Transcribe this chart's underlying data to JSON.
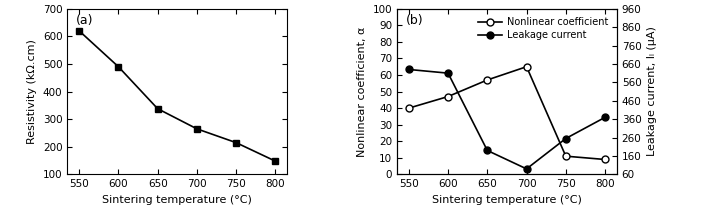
{
  "temps": [
    550,
    600,
    650,
    700,
    750,
    800
  ],
  "resistivity": [
    620,
    490,
    338,
    265,
    215,
    148
  ],
  "nonlinear_coeff": [
    40,
    47,
    57,
    65,
    11,
    9
  ],
  "leakage_current": [
    630,
    610,
    190,
    90,
    255,
    370
  ],
  "panel_a": {
    "ylabel": "Resistivity (kΩ.cm)",
    "ylim": [
      100,
      700
    ],
    "yticks": [
      100,
      200,
      300,
      400,
      500,
      600,
      700
    ]
  },
  "panel_b": {
    "ylabel_left": "Nonlinear coefficient, α",
    "ylabel_right": "Leakage current, Iₗ (μA)",
    "ylim_left": [
      0,
      100
    ],
    "yticks_left": [
      0,
      10,
      20,
      30,
      40,
      50,
      60,
      70,
      80,
      90,
      100
    ],
    "ylim_right": [
      60,
      960
    ],
    "yticks_right": [
      60,
      160,
      260,
      360,
      460,
      560,
      660,
      760,
      860,
      960
    ],
    "legend_nonlinear": "Nonlinear coefficient",
    "legend_leakage": "Leakage current"
  },
  "xlabel": "Sintering temperature (°C)",
  "xticks": [
    550,
    600,
    650,
    700,
    750,
    800
  ],
  "figsize": [
    7.09,
    2.18
  ],
  "dpi": 100
}
